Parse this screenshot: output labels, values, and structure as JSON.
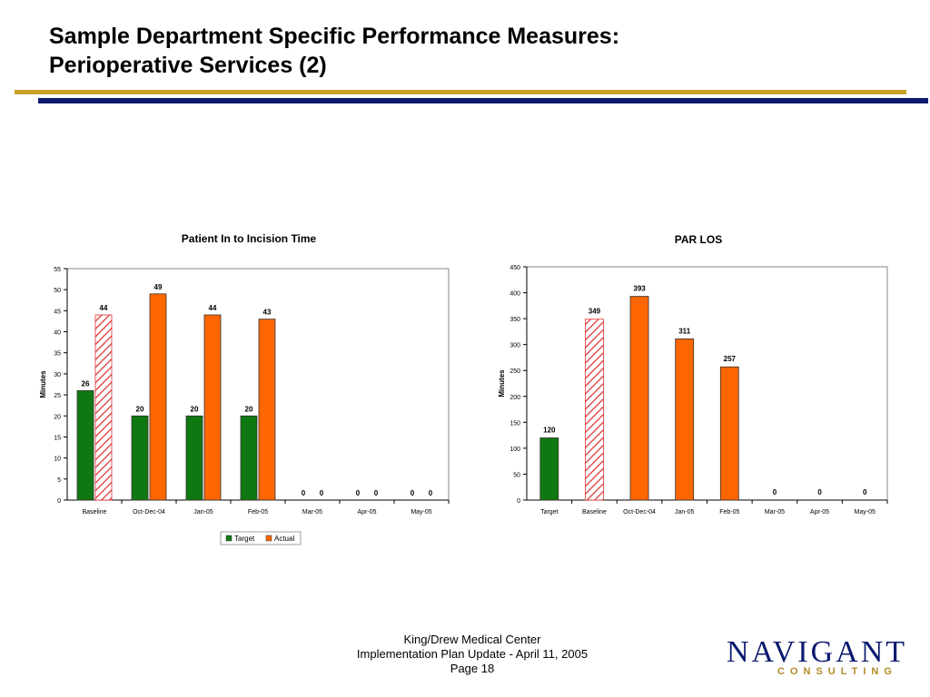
{
  "slide": {
    "title_line1": "Sample Department Specific Performance Measures:",
    "title_line2": "Perioperative Services (2)"
  },
  "footer": {
    "line1": "King/Drew Medical Center",
    "line2": "Implementation Plan Update - April 11, 2005",
    "line3": "Page 18"
  },
  "logo": {
    "main": "NAVIGANT",
    "sub": "CONSULTING"
  },
  "colors": {
    "target": "#107810",
    "actual": "#ff6600",
    "baseline_hatch": "#dd3333",
    "gold_rule": "#c9a227",
    "navy_rule": "#0b1a6e"
  },
  "chart_data": [
    {
      "type": "bar",
      "title": "Patient In to Incision Time",
      "ylabel": "Minutes",
      "ylim": [
        0,
        55
      ],
      "ytick_step": 5,
      "categories": [
        "Baseline",
        "Oct-Dec-04",
        "Jan-05",
        "Feb-05",
        "Mar-05",
        "Apr-05",
        "May-05"
      ],
      "series": [
        {
          "name": "Target",
          "values": [
            26,
            20,
            20,
            20,
            0,
            0,
            0
          ]
        },
        {
          "name": "Actual",
          "values": [
            44,
            49,
            44,
            43,
            0,
            0,
            0
          ]
        }
      ],
      "hatched_points": [
        {
          "series": 1,
          "index": 0
        }
      ],
      "legend": [
        "Target",
        "Actual"
      ],
      "legend_position": "bottom"
    },
    {
      "type": "bar",
      "title": "PAR LOS",
      "ylabel": "Minutes",
      "ylim": [
        0,
        450
      ],
      "ytick_step": 50,
      "categories": [
        "Target",
        "Baseline",
        "Oct-Dec-04",
        "Jan-05",
        "Feb-05",
        "Mar-05",
        "Apr-05",
        "May-05"
      ],
      "values": [
        120,
        349,
        393,
        311,
        257,
        0,
        0,
        0
      ],
      "bar_styles": [
        "target",
        "hatched",
        "actual",
        "actual",
        "actual",
        "actual",
        "actual",
        "actual"
      ]
    }
  ]
}
